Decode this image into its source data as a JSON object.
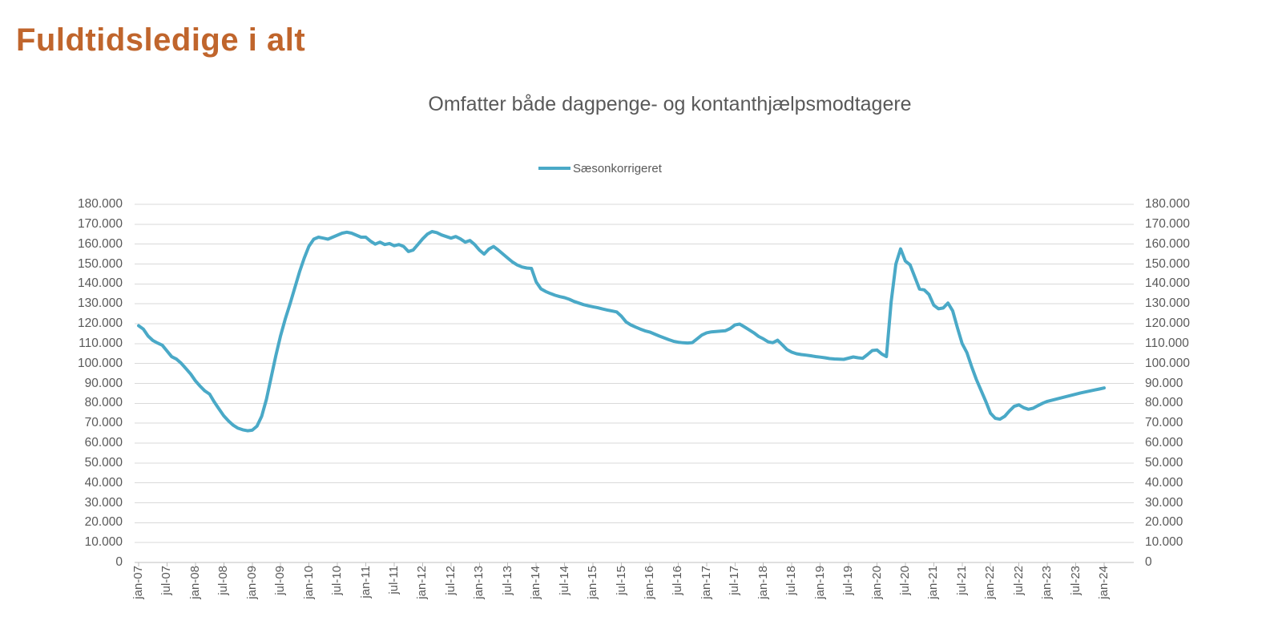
{
  "page": {
    "title": "Fuldtidsledige i alt"
  },
  "colors": {
    "title": "#C0652C",
    "line": "#4AA9C7",
    "text": "#595959",
    "gridline": "#D9D9D9",
    "axis": "#BFBFBF"
  },
  "chart_data": {
    "type": "line",
    "title": "Omfatter både dagpenge- og kontanthjælpsmodtagere",
    "series_name": "Sæsonkorrigeret",
    "frequency": "monthly",
    "x_start": "jan-07",
    "x_end": "jan-24",
    "ylim": [
      0,
      180000
    ],
    "y_gridline_step": 10000,
    "grid": true,
    "legend_position": "top-center",
    "x_tick_labels": [
      "jan-07",
      "jul-07",
      "jan-08",
      "jul-08",
      "jan-09",
      "jul-09",
      "jan-10",
      "jul-10",
      "jan-11",
      "jul-11",
      "jan-12",
      "jul-12",
      "jan-13",
      "jul-13",
      "jan-14",
      "jul-14",
      "jan-15",
      "jul-15",
      "jan-16",
      "jul-16",
      "jan-17",
      "jul-17",
      "jan-18",
      "jul-18",
      "jan-19",
      "jul-19",
      "jan-20",
      "jul-20",
      "jan-21",
      "jul-21",
      "jan-22",
      "jul-22",
      "jan-23",
      "jul-23",
      "jan-24"
    ],
    "y_tick_labels": [
      "0",
      "10.000",
      "20.000",
      "30.000",
      "40.000",
      "50.000",
      "60.000",
      "70.000",
      "80.000",
      "90.000",
      "100.000",
      "110.000",
      "120.000",
      "130.000",
      "140.000",
      "150.000",
      "160.000",
      "170.000",
      "180.000"
    ],
    "values": [
      119000,
      117300,
      113800,
      111600,
      110300,
      109200,
      106300,
      103400,
      102200,
      100100,
      97400,
      94700,
      91300,
      88600,
      86200,
      84600,
      80600,
      77100,
      73700,
      71100,
      69000,
      67500,
      66700,
      66200,
      66500,
      68500,
      73500,
      82000,
      93000,
      104000,
      114000,
      122500,
      130000,
      138000,
      146000,
      153000,
      159000,
      162500,
      163500,
      163000,
      162500,
      163500,
      164500,
      165500,
      166000,
      165500,
      164500,
      163500,
      163500,
      161500,
      160000,
      161000,
      159800,
      160300,
      159200,
      159800,
      158800,
      156300,
      157000,
      159800,
      162600,
      165000,
      166300,
      165800,
      164600,
      163800,
      163000,
      163800,
      162600,
      161000,
      161800,
      159800,
      157000,
      155000,
      157500,
      158800,
      157000,
      155000,
      153000,
      151000,
      149500,
      148500,
      148000,
      147800,
      141000,
      137500,
      136200,
      135200,
      134300,
      133600,
      133100,
      132300,
      131200,
      130400,
      129600,
      129000,
      128500,
      128000,
      127400,
      126900,
      126400,
      125900,
      123800,
      120900,
      119400,
      118300,
      117300,
      116400,
      115800,
      114800,
      113800,
      112900,
      112000,
      111200,
      110700,
      110400,
      110300,
      110500,
      112400,
      114300,
      115400,
      115900,
      116100,
      116300,
      116500,
      117600,
      119400,
      119800,
      118400,
      116900,
      115400,
      113600,
      112400,
      110900,
      110400,
      111700,
      109400,
      107000,
      105700,
      104900,
      104500,
      104200,
      103900,
      103500,
      103200,
      102900,
      102500,
      102300,
      102200,
      102100,
      102700,
      103300,
      102900,
      102600,
      104500,
      106500,
      106800,
      104800,
      103500,
      131000,
      150000,
      157600,
      151500,
      149600,
      143500,
      137400,
      137000,
      134700,
      129300,
      127500,
      127900,
      130400,
      126500,
      118000,
      110000,
      105500,
      98500,
      92000,
      86500,
      81000,
      75000,
      72500,
      72000,
      73500,
      76200,
      78500,
      79200,
      77800,
      77000,
      77500,
      78800,
      80000,
      81000,
      81600,
      82200,
      82800,
      83400,
      84000,
      84600,
      85200,
      85700,
      86200,
      86700,
      87200,
      87700
    ]
  }
}
